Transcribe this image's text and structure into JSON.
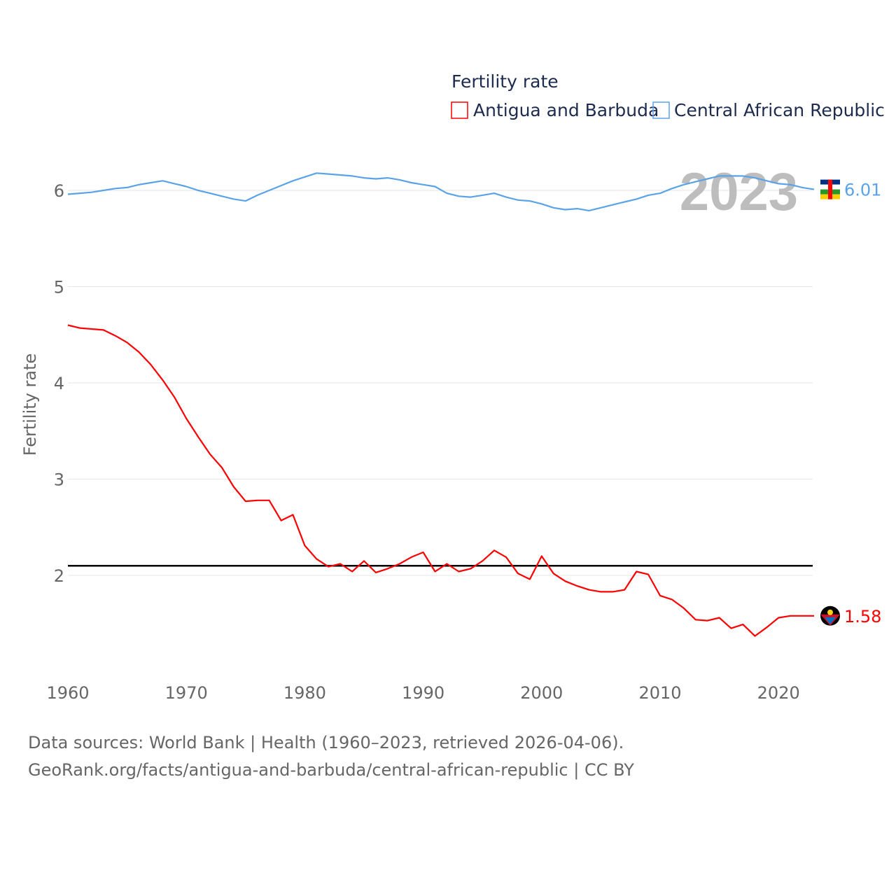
{
  "chart_data": {
    "type": "line",
    "title": "",
    "ylabel": "Fertility rate",
    "xlabel": "",
    "legend_title": "Fertility rate",
    "legend_position": "top-right",
    "year_label": "2023",
    "ylim": [
      1.0,
      6.6
    ],
    "xlim": [
      1960,
      2023
    ],
    "y_ticks": [
      2,
      3,
      4,
      5,
      6
    ],
    "x_ticks": [
      1960,
      1970,
      1980,
      1990,
      2000,
      2010,
      2020
    ],
    "grid": true,
    "reference_line": 2.1,
    "x_start": 1960,
    "series": [
      {
        "name": "Antigua and Barbuda",
        "color": "#ff0000",
        "end_label": "1.58",
        "values": [
          4.6,
          4.57,
          4.56,
          4.55,
          4.49,
          4.42,
          4.32,
          4.19,
          4.03,
          3.85,
          3.63,
          3.44,
          3.26,
          3.12,
          2.92,
          2.77,
          2.78,
          2.78,
          2.57,
          2.63,
          2.31,
          2.17,
          2.09,
          2.12,
          2.04,
          2.15,
          2.03,
          2.07,
          2.12,
          2.19,
          2.24,
          2.04,
          2.12,
          2.04,
          2.07,
          2.15,
          2.26,
          2.19,
          2.02,
          1.96,
          2.2,
          2.02,
          1.94,
          1.89,
          1.85,
          1.83,
          1.83,
          1.85,
          2.04,
          2.01,
          1.79,
          1.75,
          1.66,
          1.54,
          1.53,
          1.56,
          1.45,
          1.49,
          1.37,
          1.46,
          1.56,
          1.58,
          1.58,
          1.58
        ]
      },
      {
        "name": "Central African Republic",
        "color": "#5ba3e8",
        "end_label": "6.01",
        "values": [
          5.96,
          5.97,
          5.98,
          6.0,
          6.02,
          6.03,
          6.06,
          6.08,
          6.1,
          6.07,
          6.04,
          6.0,
          5.97,
          5.94,
          5.91,
          5.89,
          5.95,
          6.0,
          6.05,
          6.1,
          6.14,
          6.18,
          6.17,
          6.16,
          6.15,
          6.13,
          6.12,
          6.13,
          6.11,
          6.08,
          6.06,
          6.04,
          5.97,
          5.94,
          5.93,
          5.95,
          5.97,
          5.93,
          5.9,
          5.89,
          5.86,
          5.82,
          5.8,
          5.81,
          5.79,
          5.82,
          5.85,
          5.88,
          5.91,
          5.95,
          5.97,
          6.02,
          6.06,
          6.09,
          6.12,
          6.15,
          6.15,
          6.15,
          6.13,
          6.1,
          6.07,
          6.06,
          6.03,
          6.01
        ]
      }
    ]
  },
  "footer": {
    "line1": "Data sources: World Bank | Health (1960–2023, retrieved 2026-04-06).",
    "line2": "GeoRank.org/facts/antigua-and-barbuda/central-african-republic | CC BY"
  }
}
